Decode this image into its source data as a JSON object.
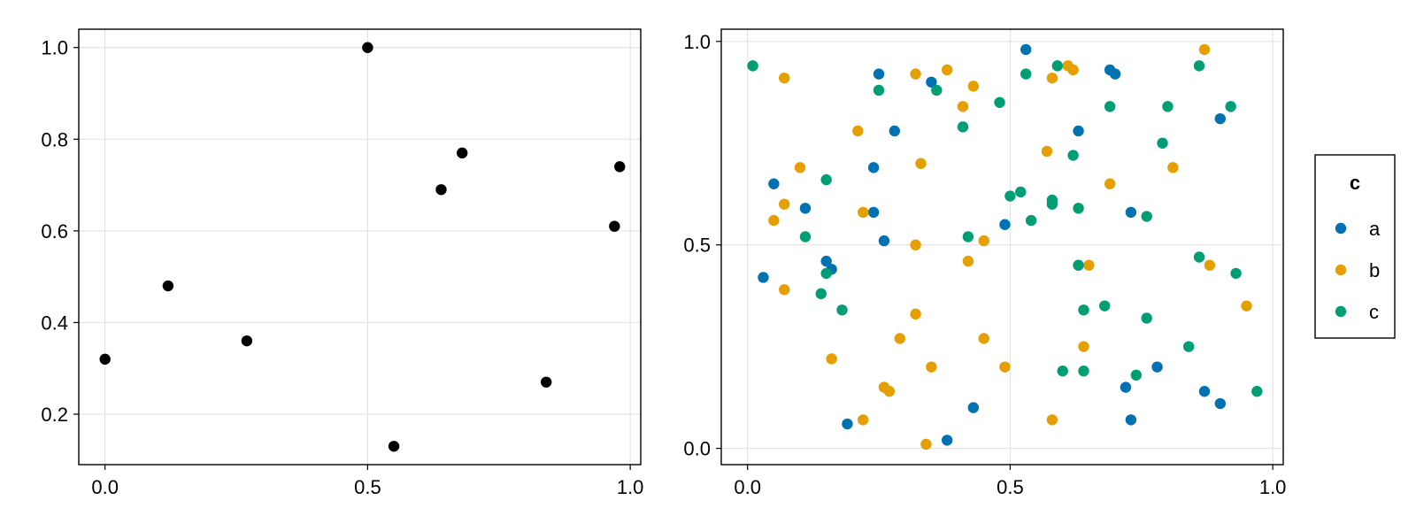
{
  "chart_data": [
    {
      "type": "scatter",
      "title": "",
      "xlabel": "",
      "ylabel": "",
      "xlim": [
        -0.05,
        1.02
      ],
      "ylim": [
        0.09,
        1.04
      ],
      "x_ticks": [
        0.0,
        0.5,
        1.0
      ],
      "x_tick_labels": [
        "0.0",
        "0.5",
        "1.0"
      ],
      "y_ticks": [
        0.2,
        0.4,
        0.6,
        0.8,
        1.0
      ],
      "y_tick_labels": [
        "0.2",
        "0.4",
        "0.6",
        "0.8",
        "1.0"
      ],
      "grid": true,
      "series": [
        {
          "color": "#000000",
          "points": [
            {
              "x": 0.0,
              "y": 0.32
            },
            {
              "x": 0.12,
              "y": 0.48
            },
            {
              "x": 0.27,
              "y": 0.36
            },
            {
              "x": 0.5,
              "y": 1.0
            },
            {
              "x": 0.55,
              "y": 0.13
            },
            {
              "x": 0.64,
              "y": 0.69
            },
            {
              "x": 0.68,
              "y": 0.77
            },
            {
              "x": 0.84,
              "y": 0.27
            },
            {
              "x": 0.97,
              "y": 0.61
            },
            {
              "x": 0.98,
              "y": 0.74
            }
          ]
        }
      ]
    },
    {
      "type": "scatter",
      "title": "",
      "xlabel": "",
      "ylabel": "",
      "xlim": [
        -0.05,
        1.02
      ],
      "ylim": [
        -0.04,
        1.03
      ],
      "x_ticks": [
        0.0,
        0.5,
        1.0
      ],
      "x_tick_labels": [
        "0.0",
        "0.5",
        "1.0"
      ],
      "y_ticks": [
        0.0,
        0.5,
        1.0
      ],
      "y_tick_labels": [
        "0.0",
        "0.5",
        "1.0"
      ],
      "grid": true,
      "legend": {
        "title": "c",
        "placement": "right"
      },
      "series": [
        {
          "name": "a",
          "color": "#0072B2",
          "points": [
            {
              "x": 0.53,
              "y": 0.98
            },
            {
              "x": 0.35,
              "y": 0.9
            },
            {
              "x": 0.25,
              "y": 0.92
            },
            {
              "x": 0.69,
              "y": 0.93
            },
            {
              "x": 0.7,
              "y": 0.92
            },
            {
              "x": 0.9,
              "y": 0.81
            },
            {
              "x": 0.63,
              "y": 0.78
            },
            {
              "x": 0.28,
              "y": 0.78
            },
            {
              "x": 0.24,
              "y": 0.69
            },
            {
              "x": 0.05,
              "y": 0.65
            },
            {
              "x": 0.11,
              "y": 0.59
            },
            {
              "x": 0.24,
              "y": 0.58
            },
            {
              "x": 0.73,
              "y": 0.58
            },
            {
              "x": 0.49,
              "y": 0.55
            },
            {
              "x": 0.26,
              "y": 0.51
            },
            {
              "x": 0.15,
              "y": 0.46
            },
            {
              "x": 0.16,
              "y": 0.44
            },
            {
              "x": 0.03,
              "y": 0.42
            },
            {
              "x": 0.78,
              "y": 0.2
            },
            {
              "x": 0.72,
              "y": 0.15
            },
            {
              "x": 0.87,
              "y": 0.14
            },
            {
              "x": 0.73,
              "y": 0.07
            },
            {
              "x": 0.9,
              "y": 0.11
            },
            {
              "x": 0.43,
              "y": 0.1
            },
            {
              "x": 0.19,
              "y": 0.06
            },
            {
              "x": 0.38,
              "y": 0.02
            }
          ]
        },
        {
          "name": "b",
          "color": "#E69F00",
          "points": [
            {
              "x": 0.07,
              "y": 0.91
            },
            {
              "x": 0.32,
              "y": 0.92
            },
            {
              "x": 0.38,
              "y": 0.93
            },
            {
              "x": 0.43,
              "y": 0.89
            },
            {
              "x": 0.58,
              "y": 0.91
            },
            {
              "x": 0.61,
              "y": 0.94
            },
            {
              "x": 0.62,
              "y": 0.93
            },
            {
              "x": 0.87,
              "y": 0.98
            },
            {
              "x": 0.41,
              "y": 0.84
            },
            {
              "x": 0.21,
              "y": 0.78
            },
            {
              "x": 0.57,
              "y": 0.73
            },
            {
              "x": 0.1,
              "y": 0.69
            },
            {
              "x": 0.33,
              "y": 0.7
            },
            {
              "x": 0.81,
              "y": 0.69
            },
            {
              "x": 0.69,
              "y": 0.65
            },
            {
              "x": 0.07,
              "y": 0.6
            },
            {
              "x": 0.22,
              "y": 0.58
            },
            {
              "x": 0.05,
              "y": 0.56
            },
            {
              "x": 0.45,
              "y": 0.51
            },
            {
              "x": 0.32,
              "y": 0.5
            },
            {
              "x": 0.42,
              "y": 0.46
            },
            {
              "x": 0.65,
              "y": 0.45
            },
            {
              "x": 0.88,
              "y": 0.45
            },
            {
              "x": 0.07,
              "y": 0.39
            },
            {
              "x": 0.95,
              "y": 0.35
            },
            {
              "x": 0.32,
              "y": 0.33
            },
            {
              "x": 0.29,
              "y": 0.27
            },
            {
              "x": 0.45,
              "y": 0.27
            },
            {
              "x": 0.64,
              "y": 0.25
            },
            {
              "x": 0.16,
              "y": 0.22
            },
            {
              "x": 0.35,
              "y": 0.2
            },
            {
              "x": 0.49,
              "y": 0.2
            },
            {
              "x": 0.26,
              "y": 0.15
            },
            {
              "x": 0.27,
              "y": 0.14
            },
            {
              "x": 0.22,
              "y": 0.07
            },
            {
              "x": 0.58,
              "y": 0.07
            },
            {
              "x": 0.34,
              "y": 0.01
            }
          ]
        },
        {
          "name": "c",
          "color": "#009E73",
          "points": [
            {
              "x": 0.01,
              "y": 0.94
            },
            {
              "x": 0.25,
              "y": 0.88
            },
            {
              "x": 0.36,
              "y": 0.88
            },
            {
              "x": 0.53,
              "y": 0.92
            },
            {
              "x": 0.59,
              "y": 0.94
            },
            {
              "x": 0.86,
              "y": 0.94
            },
            {
              "x": 0.48,
              "y": 0.85
            },
            {
              "x": 0.41,
              "y": 0.79
            },
            {
              "x": 0.69,
              "y": 0.84
            },
            {
              "x": 0.8,
              "y": 0.84
            },
            {
              "x": 0.92,
              "y": 0.84
            },
            {
              "x": 0.79,
              "y": 0.75
            },
            {
              "x": 0.62,
              "y": 0.72
            },
            {
              "x": 0.15,
              "y": 0.66
            },
            {
              "x": 0.5,
              "y": 0.62
            },
            {
              "x": 0.52,
              "y": 0.63
            },
            {
              "x": 0.58,
              "y": 0.61
            },
            {
              "x": 0.58,
              "y": 0.6
            },
            {
              "x": 0.63,
              "y": 0.59
            },
            {
              "x": 0.76,
              "y": 0.57
            },
            {
              "x": 0.54,
              "y": 0.56
            },
            {
              "x": 0.11,
              "y": 0.52
            },
            {
              "x": 0.42,
              "y": 0.52
            },
            {
              "x": 0.63,
              "y": 0.45
            },
            {
              "x": 0.86,
              "y": 0.47
            },
            {
              "x": 0.93,
              "y": 0.43
            },
            {
              "x": 0.15,
              "y": 0.43
            },
            {
              "x": 0.14,
              "y": 0.38
            },
            {
              "x": 0.18,
              "y": 0.34
            },
            {
              "x": 0.64,
              "y": 0.34
            },
            {
              "x": 0.68,
              "y": 0.35
            },
            {
              "x": 0.76,
              "y": 0.32
            },
            {
              "x": 0.84,
              "y": 0.25
            },
            {
              "x": 0.6,
              "y": 0.19
            },
            {
              "x": 0.64,
              "y": 0.19
            },
            {
              "x": 0.74,
              "y": 0.18
            },
            {
              "x": 0.97,
              "y": 0.14
            }
          ]
        }
      ]
    }
  ]
}
